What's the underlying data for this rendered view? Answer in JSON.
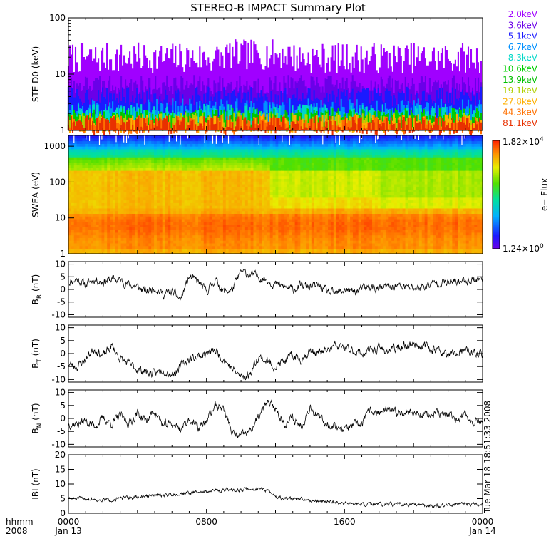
{
  "chart_data": {
    "type": "line",
    "title": "STEREO-B IMPACT Summary Plot",
    "time_axis": {
      "row1_label": "hhmm",
      "row2_label": "2008",
      "ticks": [
        {
          "time": "0000",
          "date": "Jan 13"
        },
        {
          "time": "0800",
          "date": ""
        },
        {
          "time": "1600",
          "date": ""
        },
        {
          "time": "0000",
          "date": "Jan 14"
        }
      ],
      "xlim_hours": [
        0,
        24
      ]
    },
    "panels": [
      {
        "id": "ste",
        "ylabel": "STE D0 (keV)",
        "yscale": "log",
        "ylim": [
          1,
          100
        ],
        "yticks": [
          "1",
          "10",
          "100"
        ],
        "channels": [
          {
            "energy": "2.0keV",
            "color": "#a000ff",
            "median": 15
          },
          {
            "energy": "3.6keV",
            "color": "#6a00e8",
            "median": 5.5
          },
          {
            "energy": "5.1keV",
            "color": "#1a1aff",
            "median": 3.4
          },
          {
            "energy": "6.7keV",
            "color": "#0090ff",
            "median": 2.1
          },
          {
            "energy": "8.3keV",
            "color": "#00d8c8",
            "median": 1.7
          },
          {
            "energy": "10.6keV",
            "color": "#00d000",
            "median": 1.45
          },
          {
            "energy": "13.9keV",
            "color": "#00c000",
            "median": 1.3
          },
          {
            "energy": "19.1keV",
            "color": "#b0d000",
            "median": 1.2
          },
          {
            "energy": "27.8keV",
            "color": "#ffb000",
            "median": 1.12
          },
          {
            "energy": "44.3keV",
            "color": "#ff7000",
            "median": 1.08
          },
          {
            "energy": "81.1keV",
            "color": "#e83000",
            "median": 1.04
          }
        ]
      },
      {
        "id": "swea",
        "ylabel": "SWEA (eV)",
        "type": "heatmap",
        "yscale": "log",
        "ylim": [
          1,
          2000
        ],
        "yticks": [
          "1",
          "10",
          "100",
          "1000"
        ],
        "colorbar": {
          "label": "e− Flux",
          "max_label": "1.82×10",
          "max_exp": "4",
          "min_label": "1.24×10",
          "min_exp": "0"
        }
      },
      {
        "id": "br",
        "ylabel_main": "B",
        "ylabel_sub": "R",
        "ylabel_unit": " (nT)",
        "ylim": [
          -11,
          11
        ],
        "yticks": [
          -10,
          -5,
          0,
          5,
          10
        ],
        "keypoints": [
          [
            0,
            3
          ],
          [
            0.5,
            4
          ],
          [
            1,
            2
          ],
          [
            1.5,
            4
          ],
          [
            2,
            3
          ],
          [
            2.5,
            4
          ],
          [
            3,
            3.5
          ],
          [
            3.5,
            2
          ],
          [
            4,
            1
          ],
          [
            4.5,
            -1
          ],
          [
            5,
            1
          ],
          [
            5.5,
            -2
          ],
          [
            6,
            -1
          ],
          [
            6.5,
            -4
          ],
          [
            7,
            5
          ],
          [
            7.5,
            3
          ],
          [
            8,
            -1
          ],
          [
            8.5,
            4
          ],
          [
            9,
            -1
          ],
          [
            9.5,
            0
          ],
          [
            10,
            7
          ],
          [
            10.5,
            6
          ],
          [
            11,
            5
          ],
          [
            11.5,
            4
          ],
          [
            12,
            2
          ],
          [
            12.5,
            1
          ],
          [
            13,
            0
          ],
          [
            13.5,
            1.5
          ],
          [
            14,
            1
          ],
          [
            14.5,
            1.5
          ],
          [
            15,
            -1
          ],
          [
            15.5,
            -2
          ],
          [
            16,
            0
          ],
          [
            16.5,
            -1
          ],
          [
            17,
            0
          ],
          [
            17.5,
            1
          ],
          [
            18,
            0
          ],
          [
            18.5,
            1
          ],
          [
            19,
            1.5
          ],
          [
            19.5,
            1
          ],
          [
            20,
            0.5
          ],
          [
            20.5,
            1
          ],
          [
            21,
            2
          ],
          [
            21.5,
            3
          ],
          [
            22,
            2.5
          ],
          [
            22.5,
            3
          ],
          [
            23,
            3.5
          ],
          [
            23.5,
            4
          ],
          [
            24,
            4
          ]
        ]
      },
      {
        "id": "bt",
        "ylabel_main": "B",
        "ylabel_sub": "T",
        "ylabel_unit": " (nT)",
        "ylim": [
          -11,
          11
        ],
        "yticks": [
          -10,
          -5,
          0,
          5,
          10
        ],
        "keypoints": [
          [
            0,
            -4
          ],
          [
            0.5,
            -5
          ],
          [
            1,
            -2
          ],
          [
            1.5,
            2
          ],
          [
            2,
            -1
          ],
          [
            2.5,
            3
          ],
          [
            3,
            -2
          ],
          [
            3.5,
            -4
          ],
          [
            4,
            -6
          ],
          [
            4.5,
            -7
          ],
          [
            5,
            -8
          ],
          [
            5.5,
            -6
          ],
          [
            6,
            -8
          ],
          [
            6.5,
            -5
          ],
          [
            7,
            -2
          ],
          [
            7.5,
            -1
          ],
          [
            8,
            0
          ],
          [
            8.5,
            1
          ],
          [
            9,
            -2
          ],
          [
            9.5,
            -6
          ],
          [
            10,
            -9
          ],
          [
            10.5,
            -8
          ],
          [
            11,
            -1
          ],
          [
            11.5,
            -3
          ],
          [
            12,
            -5
          ],
          [
            12.5,
            -3
          ],
          [
            13,
            -1
          ],
          [
            13.5,
            -2
          ],
          [
            14,
            1
          ],
          [
            14.5,
            0
          ],
          [
            15,
            1
          ],
          [
            15.5,
            3
          ],
          [
            16,
            2
          ],
          [
            16.5,
            1
          ],
          [
            17,
            0
          ],
          [
            17.5,
            1
          ],
          [
            18,
            2
          ],
          [
            18.5,
            1
          ],
          [
            19,
            2
          ],
          [
            19.5,
            3
          ],
          [
            20,
            4
          ],
          [
            20.5,
            3
          ],
          [
            21,
            2
          ],
          [
            21.5,
            1
          ],
          [
            22,
            -1
          ],
          [
            22.5,
            0
          ],
          [
            23,
            1
          ],
          [
            23.5,
            0
          ],
          [
            24,
            0
          ]
        ]
      },
      {
        "id": "bn",
        "ylabel_main": "B",
        "ylabel_sub": "N",
        "ylabel_unit": " (nT)",
        "ylim": [
          -11,
          11
        ],
        "yticks": [
          -10,
          -5,
          0,
          5,
          10
        ],
        "keypoints": [
          [
            0,
            -2
          ],
          [
            0.5,
            -2
          ],
          [
            1,
            -1
          ],
          [
            1.5,
            -3
          ],
          [
            2,
            0
          ],
          [
            2.5,
            -2
          ],
          [
            3,
            1
          ],
          [
            3.5,
            -2
          ],
          [
            4,
            2
          ],
          [
            4.5,
            -1
          ],
          [
            5,
            3
          ],
          [
            5.5,
            -3
          ],
          [
            6,
            -2
          ],
          [
            6.5,
            -4
          ],
          [
            7,
            0
          ],
          [
            7.5,
            -4
          ],
          [
            8,
            -1
          ],
          [
            8.5,
            5
          ],
          [
            9,
            4
          ],
          [
            9.5,
            -6
          ],
          [
            10,
            -7
          ],
          [
            10.5,
            -5
          ],
          [
            11,
            0
          ],
          [
            11.5,
            6
          ],
          [
            12,
            4
          ],
          [
            12.5,
            -2
          ],
          [
            13,
            0
          ],
          [
            13.5,
            -3
          ],
          [
            14,
            5
          ],
          [
            14.5,
            0
          ],
          [
            15,
            -2
          ],
          [
            15.5,
            -3
          ],
          [
            16,
            -4
          ],
          [
            16.5,
            -3
          ],
          [
            17,
            -2
          ],
          [
            17.5,
            3
          ],
          [
            18,
            2
          ],
          [
            18.5,
            3
          ],
          [
            19,
            2
          ],
          [
            19.5,
            3
          ],
          [
            20,
            2
          ],
          [
            20.5,
            2
          ],
          [
            21,
            1
          ],
          [
            21.5,
            2
          ],
          [
            22,
            1
          ],
          [
            22.5,
            0
          ],
          [
            23,
            1
          ],
          [
            23.5,
            -1
          ],
          [
            24,
            -1
          ]
        ]
      },
      {
        "id": "bmag",
        "ylabel_main": "IBI (nT)",
        "ylim": [
          0,
          20
        ],
        "yticks": [
          0,
          5,
          10,
          15,
          20
        ],
        "keypoints": [
          [
            0,
            5
          ],
          [
            1,
            5
          ],
          [
            2,
            4.5
          ],
          [
            3,
            5
          ],
          [
            4,
            5.5
          ],
          [
            5,
            6
          ],
          [
            6,
            6.5
          ],
          [
            7,
            7
          ],
          [
            8,
            7.5
          ],
          [
            9,
            8
          ],
          [
            10,
            8
          ],
          [
            11,
            8.5
          ],
          [
            11.5,
            8
          ],
          [
            12,
            5.5
          ],
          [
            12.5,
            5
          ],
          [
            13,
            5
          ],
          [
            14,
            4.5
          ],
          [
            15,
            4
          ],
          [
            16,
            3.5
          ],
          [
            17,
            3
          ],
          [
            18,
            3
          ],
          [
            19,
            3
          ],
          [
            20,
            2.8
          ],
          [
            21,
            2.5
          ],
          [
            22,
            2.8
          ],
          [
            23,
            3
          ],
          [
            24,
            3
          ]
        ],
        "annotation": "Tue Mar 18 18:51:33 2008"
      }
    ]
  }
}
